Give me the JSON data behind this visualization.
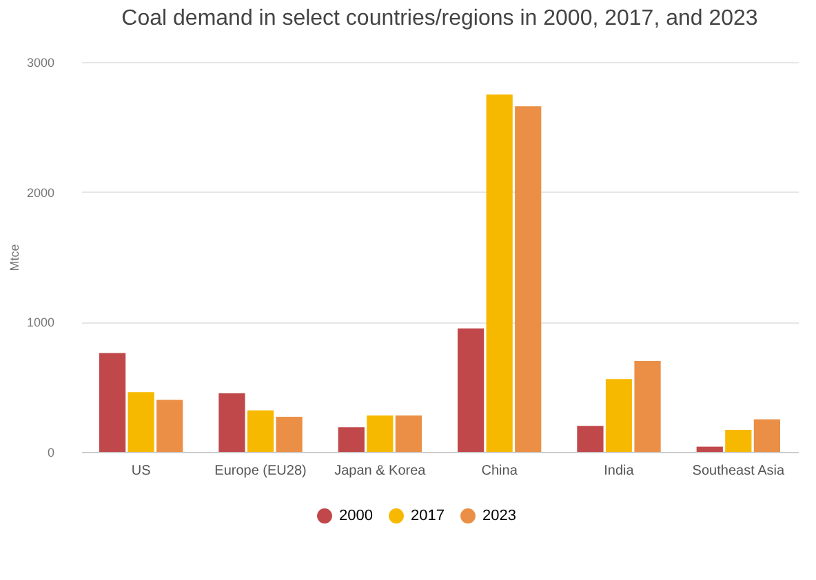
{
  "chart_data": {
    "type": "bar",
    "title": "Coal demand in select countries/regions in 2000, 2017, and 2023",
    "ylabel": "Mtce",
    "categories": [
      "US",
      "Europe (EU28)",
      "Japan & Korea",
      "China",
      "India",
      "Southeast Asia"
    ],
    "series": [
      {
        "name": "2000",
        "color": "#c0474a",
        "values": [
          760,
          450,
          190,
          950,
          200,
          40
        ]
      },
      {
        "name": "2017",
        "color": "#f7b900",
        "values": [
          460,
          320,
          280,
          2750,
          560,
          170
        ]
      },
      {
        "name": "2023",
        "color": "#ea8f45",
        "values": [
          400,
          270,
          280,
          2660,
          700,
          250
        ]
      }
    ],
    "ylim": [
      0,
      3000
    ],
    "yticks": [
      0,
      1000,
      2000,
      3000
    ],
    "grid": "y",
    "legend": "bottom"
  }
}
